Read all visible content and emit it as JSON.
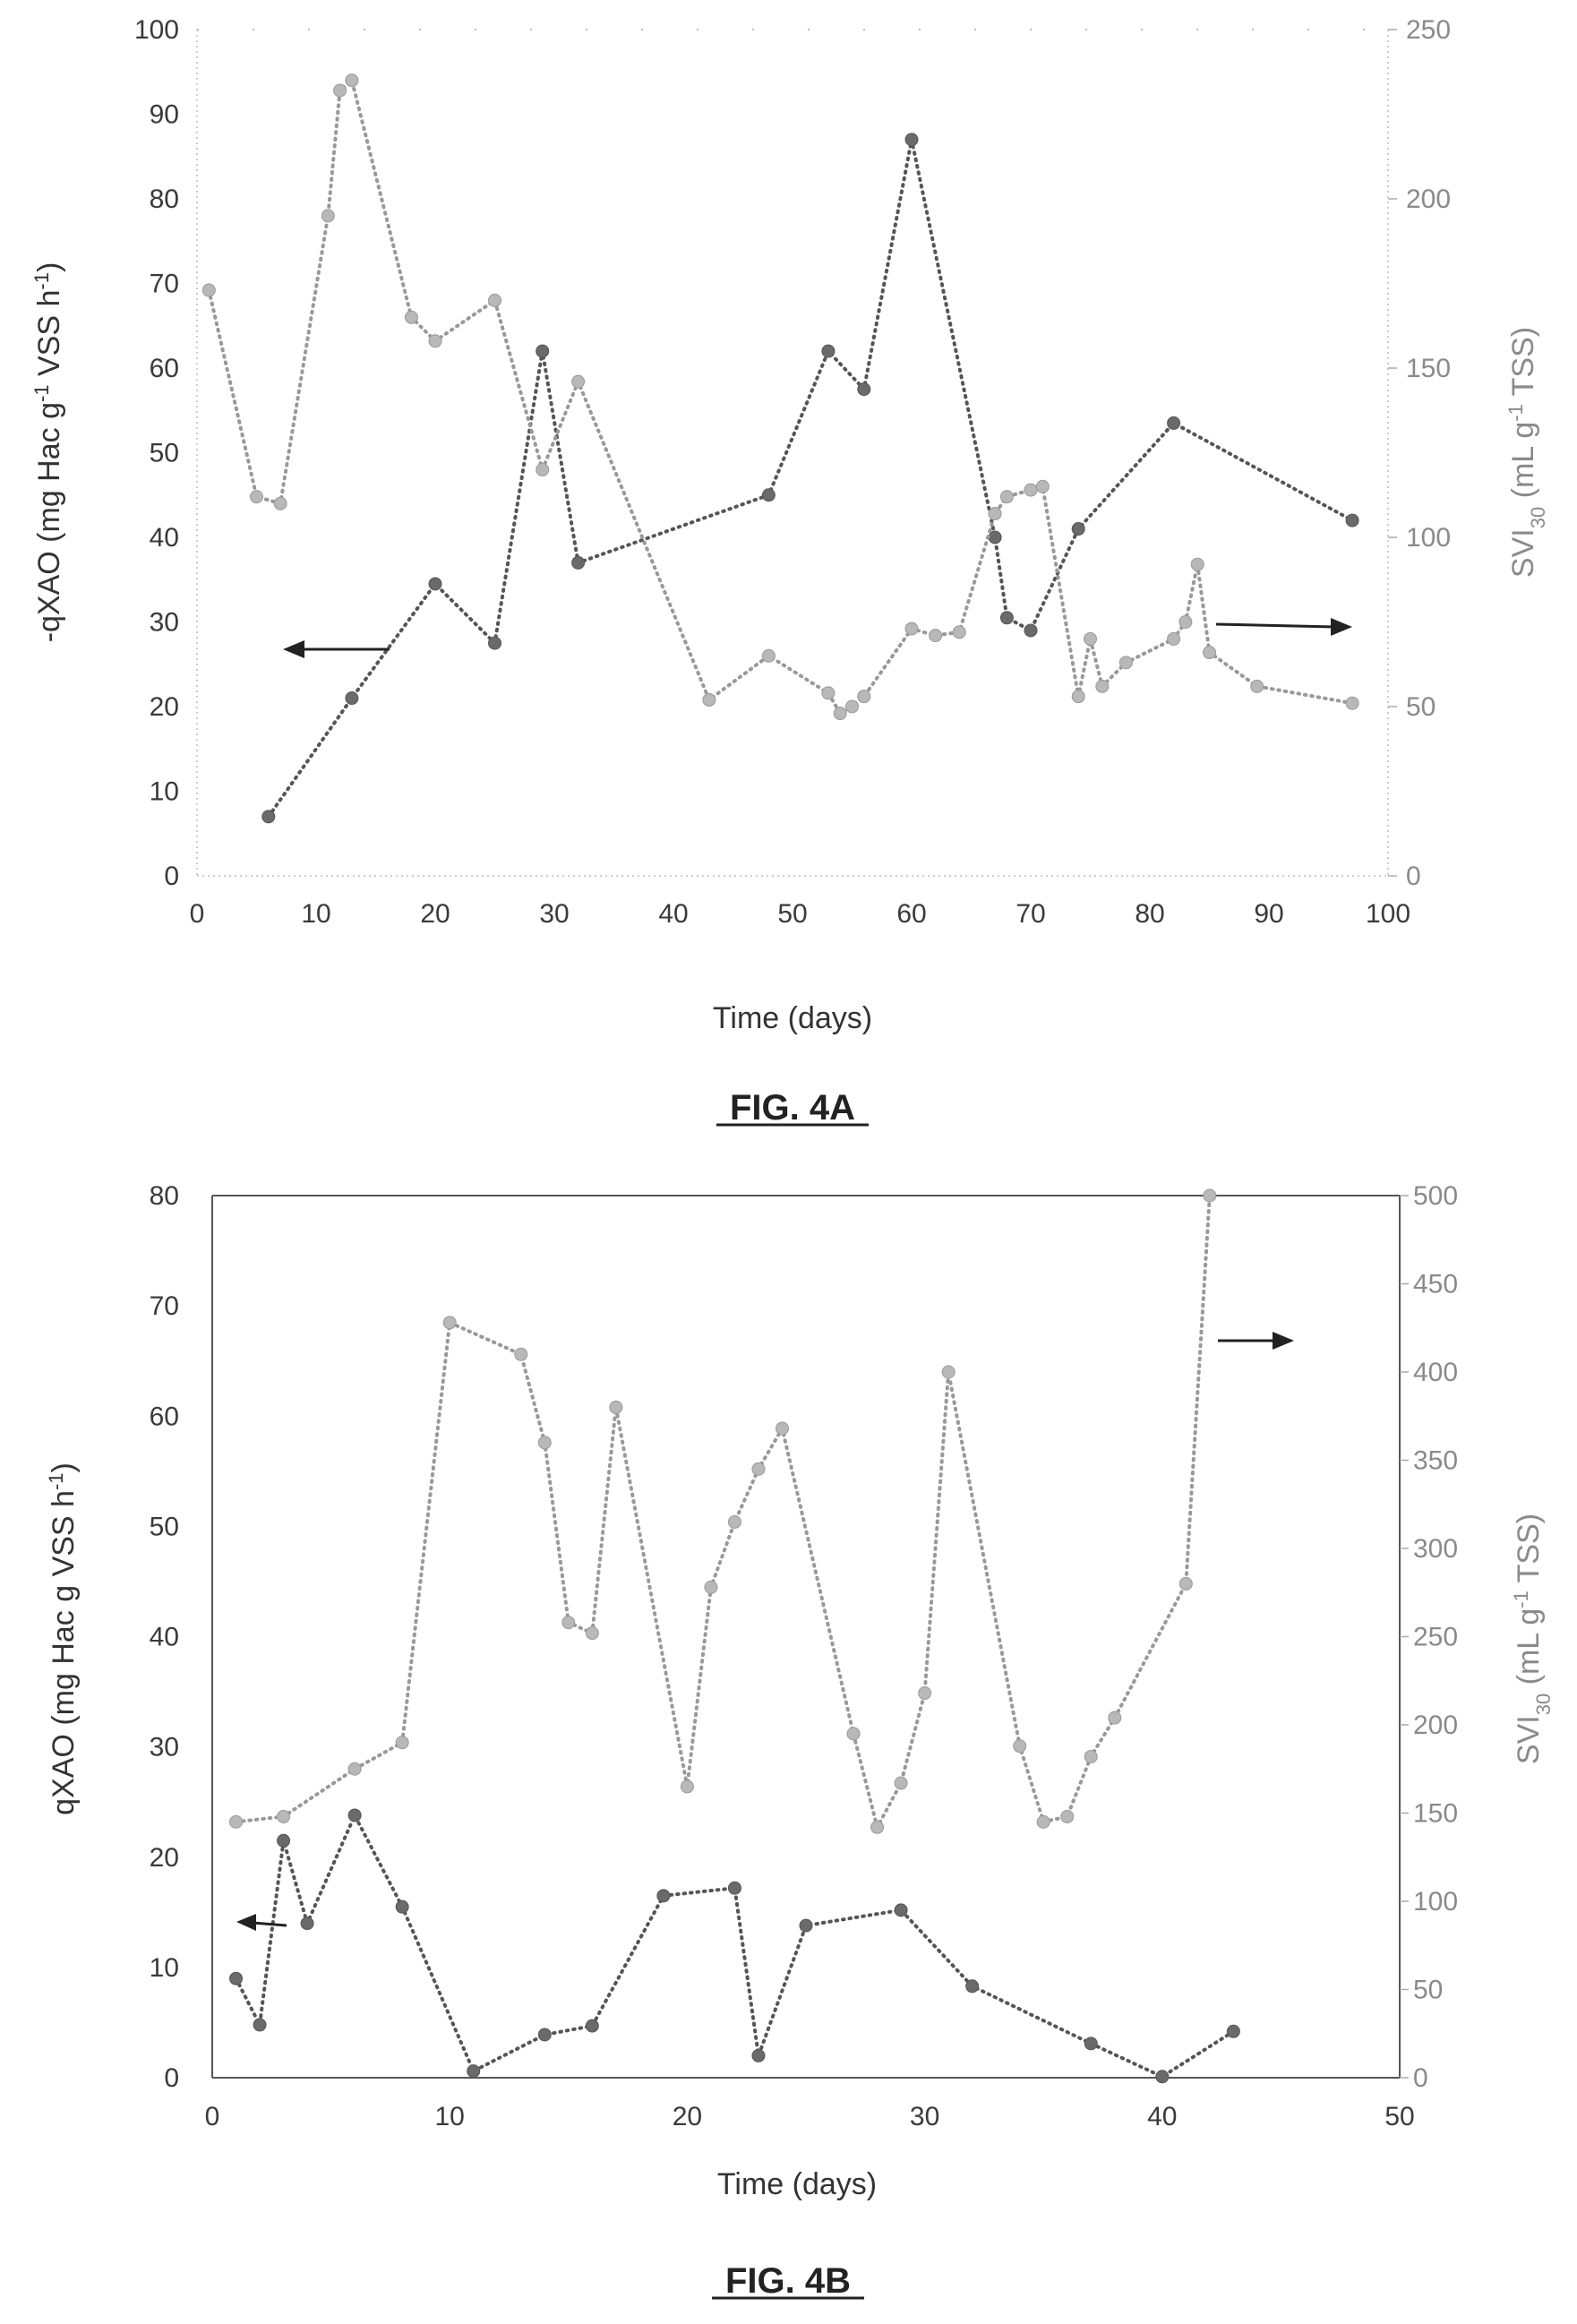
{
  "figures": [
    {
      "caption": "FIG. 4A"
    },
    {
      "caption": "FIG. 4B"
    }
  ],
  "chart_data": [
    {
      "type": "scatter",
      "title": "",
      "caption": "FIG. 4A",
      "xlabel": "Time (days)",
      "ylabel": "-qXAO (mg Hac g-1 VSS h-1)",
      "ylabel_parts": {
        "pre": "-qXAO (mg Hac g",
        "sup1": "-1",
        "mid": " VSS h",
        "sup2": "-1",
        "post": ")"
      },
      "y2label": "SVI30 (mL g-1 TSS)",
      "y2label_parts": {
        "pre": "SVI",
        "sub": "30",
        "mid": " (mL g",
        "sup": "-1",
        "post": " TSS)"
      },
      "xlim": [
        0,
        100
      ],
      "ylim": [
        0,
        100
      ],
      "y2lim": [
        0,
        250
      ],
      "xticks": [
        "0",
        "10",
        "20",
        "30",
        "40",
        "50",
        "60",
        "70",
        "80",
        "90",
        "100"
      ],
      "yticks": [
        "0",
        "10",
        "20",
        "30",
        "40",
        "50",
        "60",
        "70",
        "80",
        "90",
        "100"
      ],
      "y2ticks": [
        "0",
        "50",
        "100",
        "150",
        "200",
        "250"
      ],
      "grid": false,
      "series": [
        {
          "axis": "left",
          "color": "#555555",
          "marker_color": "#6a6a6a",
          "points": [
            [
              6,
              7
            ],
            [
              13,
              21
            ],
            [
              20,
              34.5
            ],
            [
              25,
              27.5
            ],
            [
              29,
              62
            ],
            [
              32,
              37
            ],
            [
              48,
              45
            ],
            [
              53,
              62
            ],
            [
              56,
              57.5
            ],
            [
              60,
              87
            ],
            [
              67,
              40
            ],
            [
              68,
              30.5
            ],
            [
              70,
              29
            ],
            [
              74,
              41
            ],
            [
              82,
              53.5
            ],
            [
              97,
              42
            ]
          ]
        },
        {
          "axis": "right",
          "color": "#999999",
          "marker_color": "#b8b8b8",
          "points": [
            [
              1,
              173
            ],
            [
              5,
              112
            ],
            [
              7,
              110
            ],
            [
              11,
              195
            ],
            [
              12,
              232
            ],
            [
              13,
              235
            ],
            [
              18,
              165
            ],
            [
              20,
              158
            ],
            [
              25,
              170
            ],
            [
              29,
              120
            ],
            [
              32,
              146
            ],
            [
              43,
              52
            ],
            [
              48,
              65
            ],
            [
              53,
              54
            ],
            [
              54,
              48
            ],
            [
              55,
              50
            ],
            [
              56,
              53
            ],
            [
              60,
              73
            ],
            [
              62,
              71
            ],
            [
              64,
              72
            ],
            [
              67,
              107
            ],
            [
              68,
              112
            ],
            [
              70,
              114
            ],
            [
              71,
              115
            ],
            [
              74,
              53
            ],
            [
              75,
              70
            ],
            [
              76,
              56
            ],
            [
              78,
              63
            ],
            [
              82,
              70
            ],
            [
              83,
              75
            ],
            [
              84,
              92
            ],
            [
              85,
              66
            ],
            [
              89,
              56
            ],
            [
              97,
              51
            ]
          ]
        }
      ],
      "annotations": [
        {
          "text": "",
          "type": "arrow",
          "direction": "left",
          "axis": "left"
        },
        {
          "text": "",
          "type": "arrow",
          "direction": "right",
          "axis": "right"
        }
      ]
    },
    {
      "type": "scatter",
      "title": "",
      "caption": "FIG. 4B",
      "xlabel": "Time (days)",
      "ylabel": "qXAO (mg Hac g VSS h-1)",
      "ylabel_parts": {
        "pre": "qXAO (mg Hac g VSS h",
        "sup1": "-1",
        "mid": "",
        "sup2": "",
        "post": ")"
      },
      "y2label": "SVI30 (mL g-1 TSS)",
      "y2label_parts": {
        "pre": "SVI",
        "sub": "30",
        "mid": " (mL g",
        "sup": "-1",
        "post": " TSS)"
      },
      "xlim": [
        0,
        50
      ],
      "ylim": [
        0,
        80
      ],
      "y2lim": [
        0,
        500
      ],
      "xticks": [
        "0",
        "10",
        "20",
        "30",
        "40",
        "50"
      ],
      "yticks": [
        "0",
        "10",
        "20",
        "30",
        "40",
        "50",
        "60",
        "70",
        "80"
      ],
      "y2ticks": [
        "0",
        "50",
        "100",
        "150",
        "200",
        "250",
        "300",
        "350",
        "400",
        "450",
        "500"
      ],
      "grid": false,
      "series": [
        {
          "axis": "left",
          "color": "#555555",
          "marker_color": "#6a6a6a",
          "points": [
            [
              1,
              9
            ],
            [
              2,
              4.8
            ],
            [
              3,
              21.5
            ],
            [
              4,
              14
            ],
            [
              6,
              23.8
            ],
            [
              8,
              15.5
            ],
            [
              11,
              0.6
            ],
            [
              14,
              3.9
            ],
            [
              16,
              4.7
            ],
            [
              19,
              16.5
            ],
            [
              22,
              17.2
            ],
            [
              23,
              2
            ],
            [
              25,
              13.8
            ],
            [
              29,
              15.2
            ],
            [
              32,
              8.3
            ],
            [
              37,
              3.1
            ],
            [
              40,
              0.1
            ],
            [
              43,
              4.2
            ]
          ]
        },
        {
          "axis": "right",
          "color": "#999999",
          "marker_color": "#b8b8b8",
          "points": [
            [
              1,
              145
            ],
            [
              3,
              148
            ],
            [
              6,
              175
            ],
            [
              8,
              190
            ],
            [
              10,
              428
            ],
            [
              13,
              410
            ],
            [
              14,
              360
            ],
            [
              15,
              258
            ],
            [
              16,
              252
            ],
            [
              17,
              380
            ],
            [
              20,
              165
            ],
            [
              21,
              278
            ],
            [
              22,
              315
            ],
            [
              23,
              345
            ],
            [
              24,
              368
            ],
            [
              27,
              195
            ],
            [
              28,
              142
            ],
            [
              29,
              167
            ],
            [
              30,
              218
            ],
            [
              31,
              400
            ],
            [
              34,
              188
            ],
            [
              35,
              145
            ],
            [
              36,
              148
            ],
            [
              37,
              182
            ],
            [
              38,
              204
            ],
            [
              41,
              280
            ],
            [
              42,
              500
            ]
          ]
        }
      ],
      "annotations": [
        {
          "text": "",
          "type": "arrow",
          "direction": "left",
          "axis": "left"
        },
        {
          "text": "",
          "type": "arrow",
          "direction": "right",
          "axis": "right"
        }
      ]
    }
  ]
}
